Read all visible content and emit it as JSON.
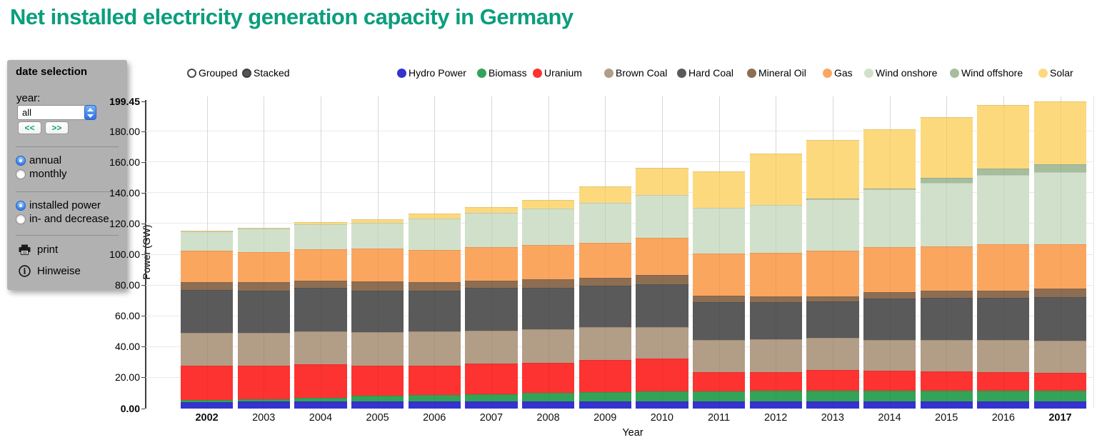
{
  "title": "Net installed electricity generation capacity in Germany",
  "sidebar": {
    "header": "date selection",
    "year_label": "year:",
    "year_value": "all",
    "prev_label": "<<",
    "next_label": ">>",
    "period_options": [
      {
        "label": "annual",
        "selected": true
      },
      {
        "label": "monthly",
        "selected": false
      }
    ],
    "mode_options": [
      {
        "label": "installed power",
        "selected": true
      },
      {
        "label": "in- and decrease",
        "selected": false
      }
    ],
    "print_label": "print",
    "hints_label": "Hinweise"
  },
  "legend_modes": [
    {
      "label": "Grouped",
      "filled": false,
      "color": "#555555"
    },
    {
      "label": "Stacked",
      "filled": true,
      "color": "#555555"
    }
  ],
  "chart_data": {
    "type": "bar",
    "stacked": true,
    "xlabel": "Year",
    "ylabel": "Power (GW)",
    "ylim": [
      0,
      199.45
    ],
    "yticks": [
      0,
      20,
      40,
      60,
      80,
      100,
      120,
      140,
      160,
      180,
      199.45
    ],
    "grid": true,
    "legend_position": "top",
    "categories": [
      "2002",
      "2003",
      "2004",
      "2005",
      "2006",
      "2007",
      "2008",
      "2009",
      "2010",
      "2011",
      "2012",
      "2013",
      "2014",
      "2015",
      "2016",
      "2017"
    ],
    "series": [
      {
        "name": "Hydro Power",
        "color": "#3533cd",
        "values": [
          4.4,
          4.5,
          4.5,
          4.6,
          4.6,
          4.6,
          4.6,
          4.6,
          4.6,
          4.6,
          4.6,
          4.6,
          4.6,
          4.6,
          4.6,
          4.5
        ]
      },
      {
        "name": "Biomass",
        "color": "#33a457",
        "values": [
          1.4,
          1.6,
          2.4,
          3.8,
          4.3,
          4.9,
          5.7,
          6.1,
          6.4,
          6.4,
          6.9,
          6.9,
          6.9,
          7.0,
          7.0,
          7.0
        ]
      },
      {
        "name": "Uranium",
        "color": "#fc3331",
        "values": [
          22.2,
          21.9,
          22.1,
          19.3,
          19.1,
          19.8,
          19.3,
          20.9,
          21.3,
          12.9,
          12.4,
          13.4,
          13.1,
          12.7,
          12.3,
          11.9
        ]
      },
      {
        "name": "Brown Coal",
        "color": "#b29d87",
        "values": [
          21.3,
          21.3,
          21.1,
          22.1,
          22.1,
          21.3,
          22.0,
          21.1,
          20.4,
          20.5,
          21.1,
          21.0,
          20.1,
          20.4,
          20.5,
          20.5
        ]
      },
      {
        "name": "Hard Coal",
        "color": "#5a5a5a",
        "values": [
          27.8,
          27.5,
          28.5,
          27.0,
          26.7,
          27.8,
          27.0,
          27.1,
          28.0,
          24.7,
          24.1,
          23.9,
          27.0,
          27.3,
          27.6,
          28.6
        ]
      },
      {
        "name": "Mineral Oil",
        "color": "#8d6e53",
        "values": [
          5.1,
          5.3,
          4.7,
          5.7,
          5.4,
          4.9,
          5.5,
          5.3,
          6.0,
          4.2,
          3.7,
          3.0,
          3.9,
          4.8,
          4.8,
          5.4
        ]
      },
      {
        "name": "Gas",
        "color": "#fba65f",
        "values": [
          20.4,
          19.4,
          20.4,
          21.3,
          21.0,
          21.6,
          22.3,
          22.6,
          24.4,
          27.3,
          28.3,
          29.8,
          29.3,
          28.4,
          30.0,
          28.9
        ]
      },
      {
        "name": "Wind onshore",
        "color": "#d1e0ca",
        "values": [
          12.3,
          15.4,
          16.2,
          17.0,
          20.2,
          22.1,
          23.5,
          26.1,
          27.7,
          29.8,
          31.0,
          33.3,
          37.4,
          41.4,
          45.2,
          46.7
        ]
      },
      {
        "name": "Wind offshore",
        "color": "#a6bd9e",
        "values": [
          0,
          0,
          0,
          0,
          0,
          0,
          0,
          0,
          0.1,
          0.2,
          0.3,
          0.6,
          0.9,
          3.4,
          3.9,
          5.1
        ]
      },
      {
        "name": "Solar",
        "color": "#fdd97d",
        "values": [
          0.4,
          0.4,
          1.1,
          2.3,
          3.1,
          3.8,
          5.6,
          10.5,
          17.4,
          23.4,
          33.2,
          37.9,
          38.5,
          39.4,
          41.6,
          40.85
        ]
      }
    ],
    "totals": [
      115.3,
      117.3,
      121.0,
      123.1,
      126.5,
      130.8,
      135.5,
      144.3,
      156.3,
      154.0,
      165.6,
      174.4,
      181.7,
      189.4,
      197.5,
      199.45
    ]
  }
}
